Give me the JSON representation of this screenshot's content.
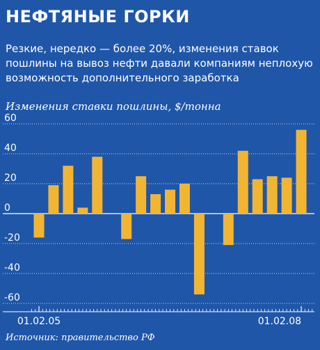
{
  "header": {
    "title": "НЕФТЯНЫЕ ГОРКИ",
    "subtitle": "Резкие, нередко — более 20%, изменения ставок пошлины на вывоз нефти давали компаниям неплохую возможность дополнительного заработка",
    "source": "Источник: правительство РФ"
  },
  "colors": {
    "background": "#1f56a8",
    "bar": "#f2b533",
    "gridline": "#ffffff"
  },
  "chart_data": {
    "type": "bar",
    "title": "Изменения ставки пошлины, $/тонна",
    "xlabel": "",
    "ylabel": "",
    "ylim": [
      -60,
      60
    ],
    "yticks": [
      60,
      40,
      20,
      0,
      -20,
      -40,
      -60
    ],
    "x_tick_labels": [
      {
        "index": 0,
        "label": "01.02.05"
      },
      {
        "index": 18,
        "label": "01.02.08"
      }
    ],
    "values": [
      -16,
      19,
      32,
      4,
      38,
      0,
      -17,
      25,
      13,
      16,
      20,
      -54,
      0,
      -21,
      42,
      23,
      25,
      24,
      56
    ],
    "grid": true
  }
}
